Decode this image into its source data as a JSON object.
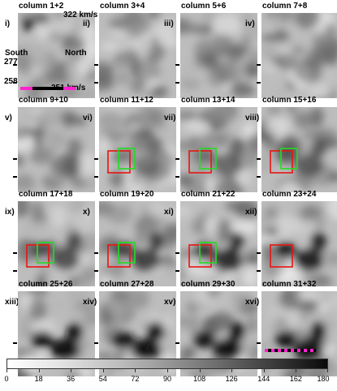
{
  "panels": [
    {
      "roman": "i)",
      "title": "column 1+2",
      "boxes": false
    },
    {
      "roman": "ii)",
      "title": "column 3+4",
      "boxes": false
    },
    {
      "roman": "iii)",
      "title": "column 5+6",
      "boxes": false
    },
    {
      "roman": "iv)",
      "title": "column 7+8",
      "boxes": false
    },
    {
      "roman": "v)",
      "title": "column 9+10",
      "boxes": false
    },
    {
      "roman": "vi)",
      "title": "column 11+12",
      "boxes": true
    },
    {
      "roman": "vii)",
      "title": "column 13+14",
      "boxes": true
    },
    {
      "roman": "viii)",
      "title": "column 15+16",
      "boxes": true
    },
    {
      "roman": "ix)",
      "title": "column 17+18",
      "boxes": true
    },
    {
      "roman": "x)",
      "title": "column 19+20",
      "boxes": true
    },
    {
      "roman": "xi)",
      "title": "column 21+22",
      "boxes": true
    },
    {
      "roman": "xii)",
      "title": "column 23+24",
      "boxes": "red-only"
    },
    {
      "roman": "xiii)",
      "title": "column 25+26",
      "boxes": false
    },
    {
      "roman": "xiv)",
      "title": "column 27+28",
      "boxes": false
    },
    {
      "roman": "xv)",
      "title": "column 29+30",
      "boxes": false
    },
    {
      "roman": "xvi)",
      "title": "column 31+32",
      "boxes": false
    }
  ],
  "annotations": {
    "velocity_top": "322 km/s",
    "velocity_bottom": "251 km/s",
    "south": "South",
    "north": "North",
    "tick_277": "277",
    "tick_258": "258"
  },
  "colorbar": {
    "ticks": [
      "0",
      "18",
      "36",
      "54",
      "72",
      "90",
      "108",
      "126",
      "144",
      "162",
      "180"
    ]
  },
  "colors": {
    "red_box": "#e8140f",
    "green_box": "#22dd22",
    "magenta_bar": "#ff22cc",
    "black_bar": "#000000"
  }
}
